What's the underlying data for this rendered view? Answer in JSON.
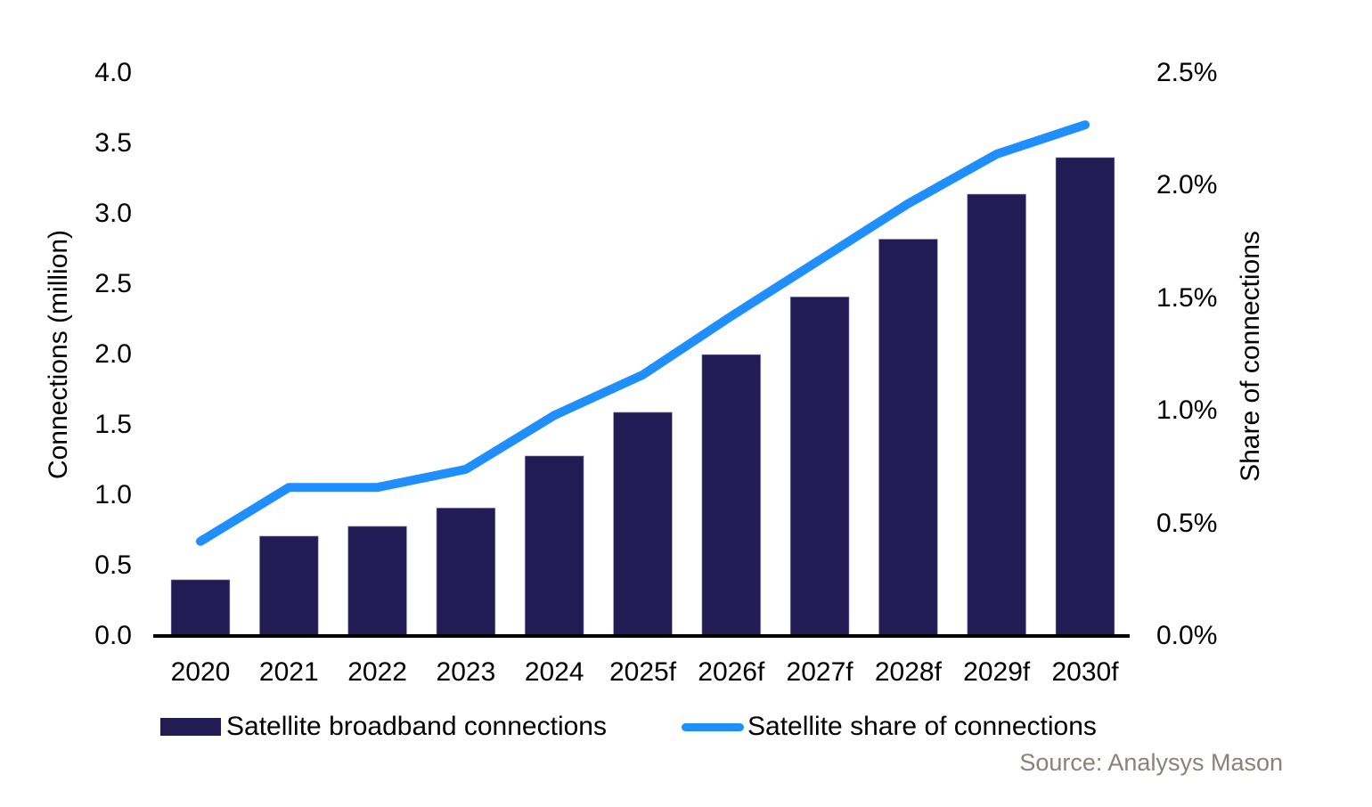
{
  "chart_data": {
    "type": "bar",
    "subtype": "combo-bar-line-dual-axis",
    "categories": [
      "2020",
      "2021",
      "2022",
      "2023",
      "2024",
      "2025f",
      "2026f",
      "2027f",
      "2028f",
      "2029f",
      "2030f"
    ],
    "series": [
      {
        "name": "Satellite broadband connections",
        "type": "bar",
        "axis": "left",
        "unit": "million",
        "color": "#221b54",
        "values": [
          0.4,
          0.71,
          0.78,
          0.91,
          1.28,
          1.59,
          2.0,
          2.41,
          2.82,
          3.14,
          3.4
        ]
      },
      {
        "name": "Satellite share of connections",
        "type": "line",
        "axis": "right",
        "unit": "%",
        "color": "#1f8fff",
        "values": [
          0.42,
          0.66,
          0.66,
          0.74,
          0.98,
          1.16,
          1.42,
          1.67,
          1.92,
          2.14,
          2.27
        ]
      }
    ],
    "left_axis": {
      "label": "Connections (million)",
      "min": 0.0,
      "max": 4.0,
      "step": 0.5,
      "ticks": [
        "4.0",
        "3.5",
        "3.0",
        "2.5",
        "2.0",
        "1.5",
        "1.0",
        "0.5",
        "0.0"
      ]
    },
    "right_axis": {
      "label": "Share of connections",
      "min": 0.0,
      "max": 2.5,
      "step": 0.5,
      "ticks": [
        "2.5%",
        "2.0%",
        "1.5%",
        "1.0%",
        "0.5%",
        "0.0%"
      ]
    },
    "grid": false,
    "legend_position": "bottom",
    "source": "Source: Analysys Mason"
  },
  "colors": {
    "bar": "#221b54",
    "line": "#1f8fff",
    "axis_line": "#000000",
    "text": "#000000",
    "source_text": "#8b8179",
    "background": "#ffffff"
  }
}
